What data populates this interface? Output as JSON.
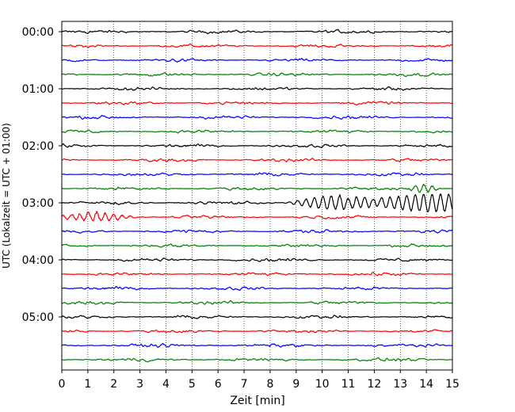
{
  "chart_data": {
    "type": "line",
    "title": "",
    "xlabel": "Zeit  [min]",
    "ylabel": "UTC (Lokalzeit = UTC + 01:00)",
    "xlim": [
      0,
      15
    ],
    "x_ticks": [
      "0",
      "1",
      "2",
      "3",
      "4",
      "5",
      "6",
      "7",
      "8",
      "9",
      "10",
      "11",
      "12",
      "13",
      "14",
      "15"
    ],
    "y_ticks": [
      "00:00",
      "01:00",
      "02:00",
      "03:00",
      "04:00",
      "05:00"
    ],
    "grid": "vertical dotted at each minute",
    "trace_interval_min": 15,
    "trace_count": 24,
    "trace_colors": [
      "#000000",
      "#ff0000",
      "#0000ff",
      "#008000"
    ],
    "events": [
      {
        "trace_start": "03:00",
        "start_min": 8.5,
        "end_min": 15,
        "peak_amplitude": "large",
        "description_color": "#000000"
      },
      {
        "trace_start": "03:15",
        "start_min": 0,
        "end_min": 4,
        "peak_amplitude": "medium",
        "description_color": "#ff0000"
      },
      {
        "trace_start": "02:45",
        "start_min": 13.3,
        "end_min": 15,
        "peak_amplitude": "medium",
        "description_color": "#008000"
      }
    ]
  }
}
